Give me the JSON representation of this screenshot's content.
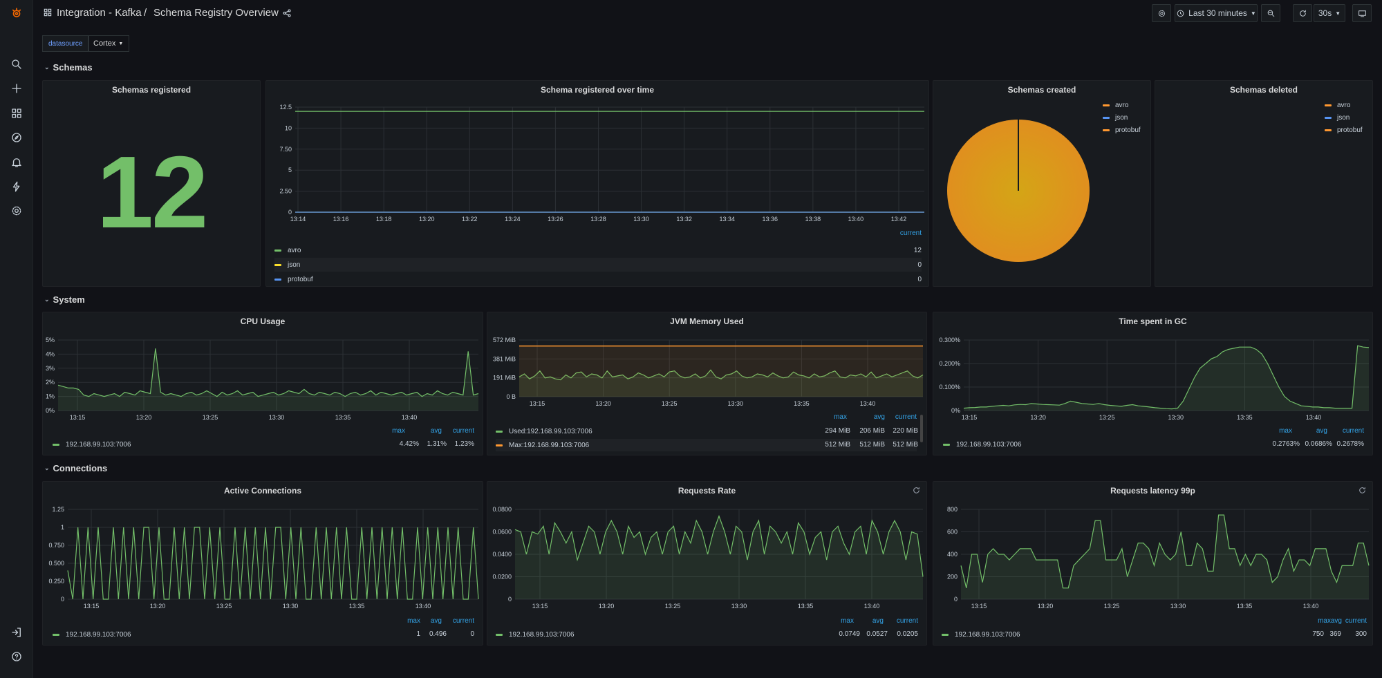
{
  "breadcrumb": {
    "folder": "Integration - Kafka",
    "separator": "/",
    "dashboard": "Schema Registry Overview"
  },
  "toolbar": {
    "time_range": "Last 30 minutes",
    "refresh_interval": "30s"
  },
  "variables": {
    "label": "datasource",
    "value": "Cortex"
  },
  "rows": {
    "schemas": "Schemas",
    "system": "System",
    "connections": "Connections"
  },
  "colors": {
    "green": "#73bf69",
    "yellow": "#fade2a",
    "blue": "#5794f2",
    "orange": "#ff9830",
    "legend_header": "#33a2e5"
  },
  "panels": {
    "schemas_registered": {
      "title": "Schemas registered",
      "value": "12"
    },
    "schema_over_time": {
      "title": "Schema registered over time",
      "legend_header": "current",
      "legend": [
        {
          "name": "avro",
          "current": "12",
          "color": "#73bf69"
        },
        {
          "name": "json",
          "current": "0",
          "color": "#fade2a"
        },
        {
          "name": "protobuf",
          "current": "0",
          "color": "#5794f2"
        }
      ]
    },
    "schemas_created": {
      "title": "Schemas created",
      "legend": [
        "avro",
        "json",
        "protobuf"
      ]
    },
    "schemas_deleted": {
      "title": "Schemas deleted",
      "legend": [
        "avro",
        "json",
        "protobuf"
      ]
    },
    "cpu": {
      "title": "CPU Usage",
      "headers": [
        "max",
        "avg",
        "current"
      ],
      "series": "192.168.99.103:7006",
      "max": "4.42%",
      "avg": "1.31%",
      "current": "1.23%"
    },
    "jvm": {
      "title": "JVM Memory Used",
      "headers": [
        "max",
        "avg",
        "current"
      ],
      "rows": [
        {
          "name": "Used:192.168.99.103:7006",
          "max": "294 MiB",
          "avg": "206 MiB",
          "current": "220 MiB"
        },
        {
          "name": "Max:192.168.99.103:7006",
          "max": "512 MiB",
          "avg": "512 MiB",
          "current": "512 MiB"
        }
      ]
    },
    "gc": {
      "title": "Time spent in GC",
      "headers": [
        "max",
        "avg",
        "current"
      ],
      "series": "192.168.99.103:7006",
      "max": "0.2763%",
      "avg": "0.0686%",
      "current": "0.2678%"
    },
    "active_conn": {
      "title": "Active Connections",
      "headers": [
        "max",
        "avg",
        "current"
      ],
      "series": "192.168.99.103:7006",
      "max": "1",
      "avg": "0.496",
      "current": "0"
    },
    "req_rate": {
      "title": "Requests Rate",
      "headers": [
        "max",
        "avg",
        "current"
      ],
      "series": "192.168.99.103:7006",
      "max": "0.0749",
      "avg": "0.0527",
      "current": "0.0205"
    },
    "req_latency": {
      "title": "Requests latency 99p",
      "headers": [
        "max",
        "avg",
        "current"
      ],
      "series": "192.168.99.103:7006",
      "max": "750",
      "avg": "369",
      "current": "300"
    }
  },
  "chart_data": [
    {
      "id": "schema_over_time",
      "type": "line",
      "title": "Schema registered over time",
      "x_ticks": [
        "13:14",
        "13:16",
        "13:18",
        "13:20",
        "13:22",
        "13:24",
        "13:26",
        "13:28",
        "13:30",
        "13:32",
        "13:34",
        "13:36",
        "13:38",
        "13:40",
        "13:42"
      ],
      "y_ticks": [
        "0",
        "2.50",
        "5",
        "7.50",
        "10",
        "12.5"
      ],
      "ylim": [
        0,
        12.5
      ],
      "series": [
        {
          "name": "avro",
          "values": [
            12,
            12,
            12,
            12,
            12,
            12,
            12,
            12,
            12,
            12,
            12,
            12,
            12,
            12,
            12
          ]
        },
        {
          "name": "json",
          "values": [
            0,
            0,
            0,
            0,
            0,
            0,
            0,
            0,
            0,
            0,
            0,
            0,
            0,
            0,
            0
          ]
        },
        {
          "name": "protobuf",
          "values": [
            0,
            0,
            0,
            0,
            0,
            0,
            0,
            0,
            0,
            0,
            0,
            0,
            0,
            0,
            0
          ]
        }
      ]
    },
    {
      "id": "schemas_created",
      "type": "pie",
      "title": "Schemas created",
      "slices": [
        {
          "name": "avro",
          "value": 12
        },
        {
          "name": "json",
          "value": 0
        },
        {
          "name": "protobuf",
          "value": 0
        }
      ]
    },
    {
      "id": "cpu",
      "type": "area",
      "title": "CPU Usage",
      "x_ticks": [
        "13:15",
        "13:20",
        "13:25",
        "13:30",
        "13:35",
        "13:40"
      ],
      "y_ticks": [
        "0%",
        "1%",
        "2%",
        "3%",
        "4%",
        "5%"
      ],
      "ylim": [
        0,
        5
      ],
      "series": [
        {
          "name": "192.168.99.103:7006",
          "values": [
            1.8,
            1.7,
            1.6,
            1.6,
            1.5,
            1.1,
            1.0,
            1.2,
            1.1,
            1.0,
            1.1,
            1.2,
            1.0,
            1.3,
            1.2,
            1.1,
            1.4,
            1.3,
            1.2,
            4.4,
            1.3,
            1.1,
            1.2,
            1.1,
            1.0,
            1.2,
            1.3,
            1.1,
            1.2,
            1.4,
            1.2,
            1.0,
            1.3,
            1.1,
            1.2,
            1.4,
            1.1,
            1.2,
            1.3,
            1.0,
            1.1,
            1.2,
            1.3,
            1.1,
            1.2,
            1.4,
            1.3,
            1.2,
            1.5,
            1.2,
            1.1,
            1.3,
            1.2,
            1.1,
            1.3,
            1.2,
            1.0,
            1.2,
            1.3,
            1.1,
            1.2,
            1.4,
            1.1,
            1.3,
            1.2,
            1.1,
            1.2,
            1.3,
            1.1,
            1.2,
            1.3,
            1.0,
            1.2,
            1.1,
            1.4,
            1.2,
            1.1,
            1.3,
            1.2,
            1.1,
            4.2,
            1.1,
            1.2
          ]
        }
      ]
    },
    {
      "id": "jvm",
      "type": "area",
      "title": "JVM Memory Used",
      "x_ticks": [
        "13:15",
        "13:20",
        "13:25",
        "13:30",
        "13:35",
        "13:40"
      ],
      "y_ticks": [
        "0 B",
        "191 MiB",
        "381 MiB",
        "572 MiB"
      ],
      "ylim": [
        0,
        572
      ],
      "series": [
        {
          "name": "Used:192.168.99.103:7006",
          "values": [
            200,
            230,
            180,
            210,
            260,
            190,
            200,
            180,
            170,
            220,
            190,
            240,
            250,
            200,
            230,
            220,
            190,
            260,
            200,
            210,
            220,
            180,
            200,
            240,
            220,
            190,
            210,
            230,
            200,
            250,
            260,
            210,
            190,
            200,
            230,
            190,
            210,
            270,
            200,
            180,
            220,
            230,
            260,
            210,
            190,
            200,
            230,
            220,
            200,
            240,
            210,
            190,
            200,
            250,
            220,
            210,
            190,
            230,
            200,
            210,
            240,
            260,
            200,
            190,
            220,
            210,
            230,
            200,
            250,
            190,
            210,
            230,
            200,
            220,
            240,
            260,
            210,
            190,
            220
          ]
        },
        {
          "name": "Max:192.168.99.103:7006",
          "values": [
            512,
            512
          ]
        }
      ]
    },
    {
      "id": "gc",
      "type": "area",
      "title": "Time spent in GC",
      "x_ticks": [
        "13:15",
        "13:20",
        "13:25",
        "13:30",
        "13:35",
        "13:40"
      ],
      "y_ticks": [
        "0%",
        "0.100%",
        "0.200%",
        "0.300%"
      ],
      "ylim": [
        0,
        0.3
      ],
      "series": [
        {
          "name": "192.168.99.103:7006",
          "values": [
            0.01,
            0.012,
            0.013,
            0.015,
            0.015,
            0.018,
            0.02,
            0.022,
            0.02,
            0.024,
            0.026,
            0.025,
            0.03,
            0.028,
            0.026,
            0.025,
            0.024,
            0.023,
            0.03,
            0.04,
            0.035,
            0.03,
            0.028,
            0.026,
            0.03,
            0.025,
            0.022,
            0.02,
            0.018,
            0.022,
            0.025,
            0.02,
            0.018,
            0.015,
            0.012,
            0.01,
            0.008,
            0.007,
            0.01,
            0.04,
            0.09,
            0.14,
            0.18,
            0.2,
            0.22,
            0.23,
            0.25,
            0.26,
            0.265,
            0.27,
            0.27,
            0.27,
            0.26,
            0.24,
            0.2,
            0.15,
            0.1,
            0.06,
            0.04,
            0.03,
            0.02,
            0.018,
            0.015,
            0.015,
            0.012,
            0.012,
            0.01,
            0.01,
            0.01,
            0.01,
            0.276,
            0.27,
            0.268
          ]
        }
      ]
    },
    {
      "id": "active_conn",
      "type": "line",
      "title": "Active Connections",
      "x_ticks": [
        "13:15",
        "13:20",
        "13:25",
        "13:30",
        "13:35",
        "13:40"
      ],
      "y_ticks": [
        "0",
        "0.250",
        "0.500",
        "0.750",
        "1",
        "1.25"
      ],
      "ylim": [
        0,
        1.25
      ],
      "series": [
        {
          "name": "192.168.99.103:7006",
          "values": [
            0.4,
            0,
            1,
            0,
            1,
            0,
            1,
            0,
            0,
            1,
            0,
            1,
            0,
            1,
            0,
            1,
            1,
            0,
            1,
            0,
            0,
            1,
            0,
            1,
            0,
            1,
            1,
            0,
            1,
            0,
            1,
            0,
            0,
            1,
            0,
            1,
            0,
            1,
            0,
            1,
            0,
            1,
            1,
            0,
            1,
            0,
            1,
            0,
            0,
            1,
            0,
            1,
            0,
            1,
            0,
            1,
            0,
            0,
            1,
            0,
            1,
            0,
            1,
            0,
            1,
            0,
            1,
            0,
            0,
            1,
            0,
            1,
            0,
            1,
            0,
            1,
            0,
            1,
            0,
            0,
            1,
            0
          ]
        }
      ]
    },
    {
      "id": "req_rate",
      "type": "area",
      "title": "Requests Rate",
      "x_ticks": [
        "13:15",
        "13:20",
        "13:25",
        "13:30",
        "13:35",
        "13:40"
      ],
      "y_ticks": [
        "0",
        "0.0200",
        "0.0400",
        "0.0600",
        "0.0800"
      ],
      "ylim": [
        0,
        0.08
      ],
      "series": [
        {
          "name": "192.168.99.103:7006",
          "values": [
            0.062,
            0.06,
            0.04,
            0.06,
            0.058,
            0.065,
            0.04,
            0.068,
            0.06,
            0.05,
            0.06,
            0.035,
            0.05,
            0.065,
            0.06,
            0.04,
            0.06,
            0.07,
            0.06,
            0.04,
            0.065,
            0.055,
            0.06,
            0.04,
            0.055,
            0.06,
            0.04,
            0.06,
            0.065,
            0.04,
            0.06,
            0.05,
            0.07,
            0.06,
            0.04,
            0.06,
            0.074,
            0.06,
            0.04,
            0.065,
            0.06,
            0.035,
            0.06,
            0.07,
            0.04,
            0.065,
            0.06,
            0.05,
            0.06,
            0.04,
            0.068,
            0.06,
            0.04,
            0.055,
            0.06,
            0.035,
            0.06,
            0.065,
            0.05,
            0.04,
            0.06,
            0.065,
            0.04,
            0.07,
            0.06,
            0.04,
            0.06,
            0.07,
            0.06,
            0.035,
            0.06,
            0.058,
            0.02
          ]
        }
      ]
    },
    {
      "id": "req_latency",
      "type": "area",
      "title": "Requests latency 99p",
      "x_ticks": [
        "13:15",
        "13:20",
        "13:25",
        "13:30",
        "13:35",
        "13:40"
      ],
      "y_ticks": [
        "0",
        "200",
        "400",
        "600",
        "800"
      ],
      "ylim": [
        0,
        800
      ],
      "series": [
        {
          "name": "192.168.99.103:7006",
          "values": [
            300,
            100,
            400,
            400,
            150,
            400,
            450,
            400,
            400,
            350,
            400,
            450,
            450,
            450,
            350,
            350,
            350,
            350,
            350,
            100,
            100,
            300,
            350,
            400,
            450,
            700,
            700,
            350,
            350,
            350,
            450,
            200,
            350,
            500,
            500,
            450,
            300,
            500,
            400,
            350,
            400,
            600,
            300,
            300,
            500,
            450,
            250,
            250,
            750,
            750,
            450,
            450,
            300,
            400,
            300,
            400,
            400,
            350,
            150,
            200,
            350,
            450,
            250,
            350,
            350,
            300,
            450,
            450,
            450,
            250,
            150,
            300,
            300,
            300,
            500,
            500,
            300
          ]
        }
      ]
    }
  ]
}
